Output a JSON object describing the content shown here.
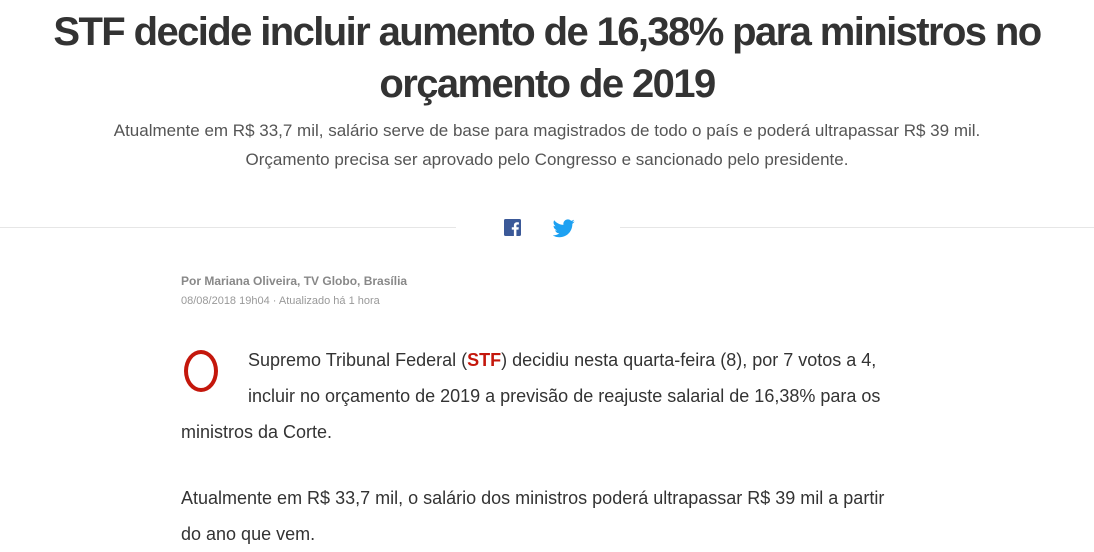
{
  "article": {
    "headline": "STF decide incluir aumento de 16,38% para ministros no orçamento de 2019",
    "subheadline": "Atualmente em R$ 33,7 mil, salário serve de base para magistrados de todo o país e poderá ultrapassar R$ 39 mil. Orçamento precisa ser aprovado pelo Congresso e sancionado pelo presidente.",
    "byline": "Por Mariana Oliveira, TV Globo, Brasília",
    "dateline": "08/08/2018 19h04 · Atualizado há 1 hora",
    "paragraph1": {
      "dropcap": "O",
      "text_before": "Supremo Tribunal Federal (",
      "link_text": "STF",
      "text_after": ") decidiu nesta quarta-feira (8), por 7 votos a 4, incluir no orçamento de 2019 a previsão de reajuste salarial de 16,38% para os ministros da Corte."
    },
    "paragraph2": "Atualmente em R$ 33,7 mil, o salário dos ministros poderá ultrapassar R$ 39 mil a partir do ano que vem."
  },
  "share": {
    "facebook_icon": "facebook-icon",
    "twitter_icon": "twitter-icon"
  },
  "colors": {
    "accent": "#c4170c",
    "facebook": "#3b5998",
    "twitter": "#1da1f2",
    "text": "#333333",
    "muted": "#888888"
  }
}
